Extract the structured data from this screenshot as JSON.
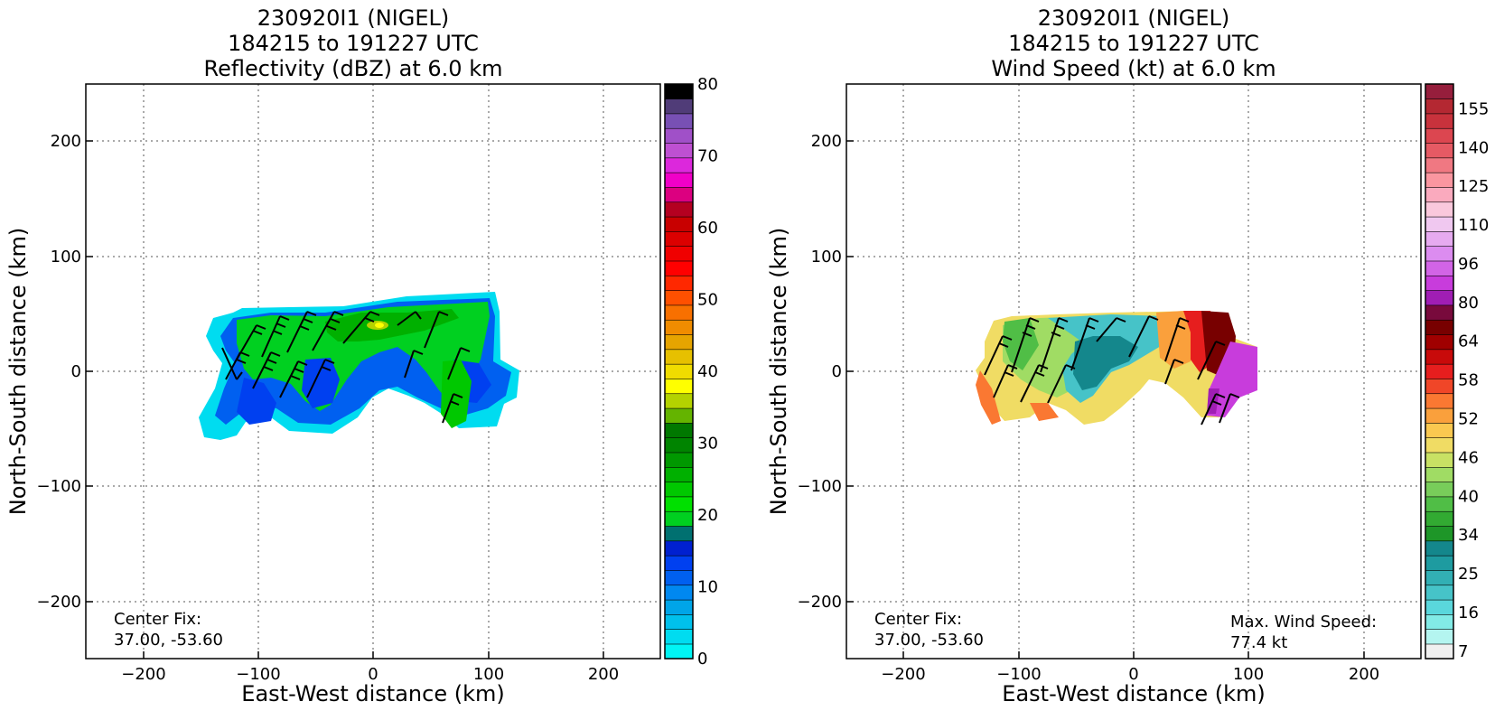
{
  "chart_data": [
    {
      "type": "heatmap",
      "title": [
        "230920I1 (NIGEL)",
        "184215 to 191227 UTC",
        "Reflectivity (dBZ) at 6.0 km"
      ],
      "xlabel": "East-West distance (km)",
      "ylabel": "North-South distance (km)",
      "xlim": [
        -250,
        250
      ],
      "ylim": [
        -250,
        250
      ],
      "xticks": [
        -200,
        -100,
        0,
        100,
        200
      ],
      "yticks": [
        -200,
        -100,
        0,
        100,
        200
      ],
      "xtick_labels": [
        "−200",
        "−100",
        "0",
        "100",
        "200"
      ],
      "ytick_labels": [
        "−200",
        "−100",
        "0",
        "100",
        "200"
      ],
      "grid": true,
      "annotation": [
        "Center Fix:",
        "37.00, -53.60"
      ],
      "colorbar": {
        "range": [
          0,
          80
        ],
        "tick_values": [
          0,
          10,
          20,
          30,
          40,
          50,
          60,
          70,
          80
        ],
        "tick_labels": [
          "0",
          "10",
          "20",
          "30",
          "40",
          "50",
          "60",
          "70",
          "80"
        ],
        "colors": [
          "#00f5f5",
          "#00dcf0",
          "#00c0ec",
          "#00a5e8",
          "#0088f0",
          "#0060f0",
          "#0040f0",
          "#0020d0",
          "#007070",
          "#00d020",
          "#00e000",
          "#00c800",
          "#00b000",
          "#009800",
          "#008400",
          "#007800",
          "#64b400",
          "#b4d200",
          "#ffff00",
          "#f0dc00",
          "#e6c000",
          "#e6a400",
          "#f08c00",
          "#f87000",
          "#ff5000",
          "#ff2800",
          "#ff0000",
          "#f00000",
          "#dc0000",
          "#c80000",
          "#b40020",
          "#dc0080",
          "#f000c8",
          "#dc28dc",
          "#be50d2",
          "#a050c8",
          "#7850b4",
          "#503c78",
          "#000000"
        ]
      },
      "data_extent": {
        "x": [
          -150,
          128
        ],
        "y": [
          -57,
          68
        ]
      }
    },
    {
      "type": "heatmap",
      "title": [
        "230920I1 (NIGEL)",
        "184215 to 191227 UTC",
        "Wind Speed (kt) at 6.0 km"
      ],
      "xlabel": "East-West distance (km)",
      "ylabel": "North-South distance (km)",
      "xlim": [
        -250,
        250
      ],
      "ylim": [
        -250,
        250
      ],
      "xticks": [
        -200,
        -100,
        0,
        100,
        200
      ],
      "yticks": [
        -200,
        -100,
        0,
        100,
        200
      ],
      "xtick_labels": [
        "−200",
        "−100",
        "0",
        "100",
        "200"
      ],
      "ytick_labels": [
        "−200",
        "−100",
        "0",
        "100",
        "200"
      ],
      "grid": true,
      "annotation": [
        "Center Fix:",
        "37.00, -53.60"
      ],
      "annotation_right": [
        "Max. Wind Speed:",
        "77.4 kt"
      ],
      "max_wind_speed_kt": 77.4,
      "colorbar": {
        "tick_labels": [
          "7",
          "16",
          "25",
          "34",
          "40",
          "46",
          "52",
          "58",
          "64",
          "80",
          "96",
          "110",
          "125",
          "140",
          "155"
        ],
        "colors": [
          "#f0f0f0",
          "#b4f5f0",
          "#82ebe6",
          "#5ad7dc",
          "#46c3c8",
          "#32afb4",
          "#1e9ba0",
          "#14878c",
          "#1e9628",
          "#32aa32",
          "#50be46",
          "#78cd5a",
          "#a0dc64",
          "#c8e164",
          "#f0dc64",
          "#fac850",
          "#faa03c",
          "#fa7832",
          "#f04628",
          "#e61e1e",
          "#c80a0a",
          "#a00000",
          "#780000",
          "#780a3c",
          "#a01eb4",
          "#c83cdc",
          "#d264e6",
          "#dc8cf0",
          "#e6aaf0",
          "#f0c8f0",
          "#fac8dc",
          "#faaabe",
          "#fa96a0",
          "#f07882",
          "#e65a64",
          "#dc4650",
          "#c8323c",
          "#b42832",
          "#961e3c"
        ]
      },
      "data_extent": {
        "x": [
          -130,
          108
        ],
        "y": [
          -47,
          53
        ]
      }
    }
  ]
}
